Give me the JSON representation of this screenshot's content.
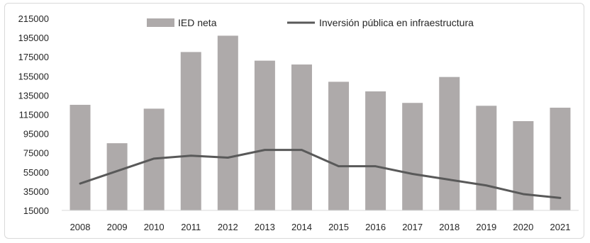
{
  "chart_data": {
    "type": "bar",
    "categories": [
      "2008",
      "2009",
      "2010",
      "2011",
      "2012",
      "2013",
      "2014",
      "2015",
      "2016",
      "2017",
      "2018",
      "2019",
      "2020",
      "2021"
    ],
    "series": [
      {
        "name": "IED neta",
        "type": "bar",
        "color": "#aeaaaa",
        "values": [
          125000,
          85000,
          121000,
          180000,
          197000,
          171000,
          167000,
          149000,
          139000,
          127000,
          154000,
          124000,
          108000,
          122000
        ]
      },
      {
        "name": "Inversión pública en infraestructura",
        "type": "line",
        "color": "#595959",
        "values": [
          43000,
          56000,
          69000,
          72000,
          70000,
          78000,
          78000,
          61000,
          61000,
          53000,
          47000,
          41000,
          32000,
          28000
        ]
      }
    ],
    "y_ticks": [
      "15000",
      "35000",
      "55000",
      "75000",
      "95000",
      "115000",
      "135000",
      "155000",
      "175000",
      "195000",
      "215000"
    ],
    "ylim": [
      15000,
      215000
    ],
    "legend_position": "top-center",
    "grid": false,
    "title": "",
    "xlabel": "",
    "ylabel": ""
  }
}
